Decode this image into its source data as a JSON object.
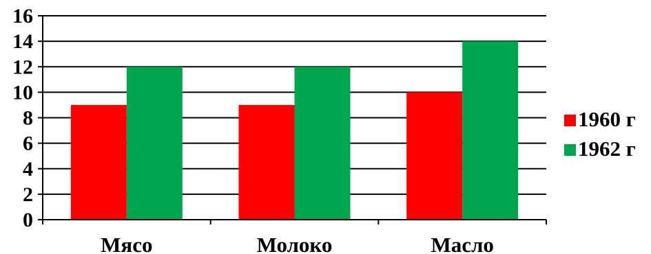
{
  "chart_data": {
    "type": "bar",
    "categories": [
      "Мясо",
      "Молоко",
      "Масло"
    ],
    "series": [
      {
        "name": "1960 г",
        "values": [
          9,
          9,
          10
        ],
        "color": "#ff0000"
      },
      {
        "name": "1962 г",
        "values": [
          12,
          12,
          14
        ],
        "color": "#00a550"
      }
    ],
    "ylim": [
      0,
      16
    ],
    "yticks": [
      0,
      2,
      4,
      6,
      8,
      10,
      12,
      14,
      16
    ],
    "grid": true,
    "legend_position": "right"
  }
}
